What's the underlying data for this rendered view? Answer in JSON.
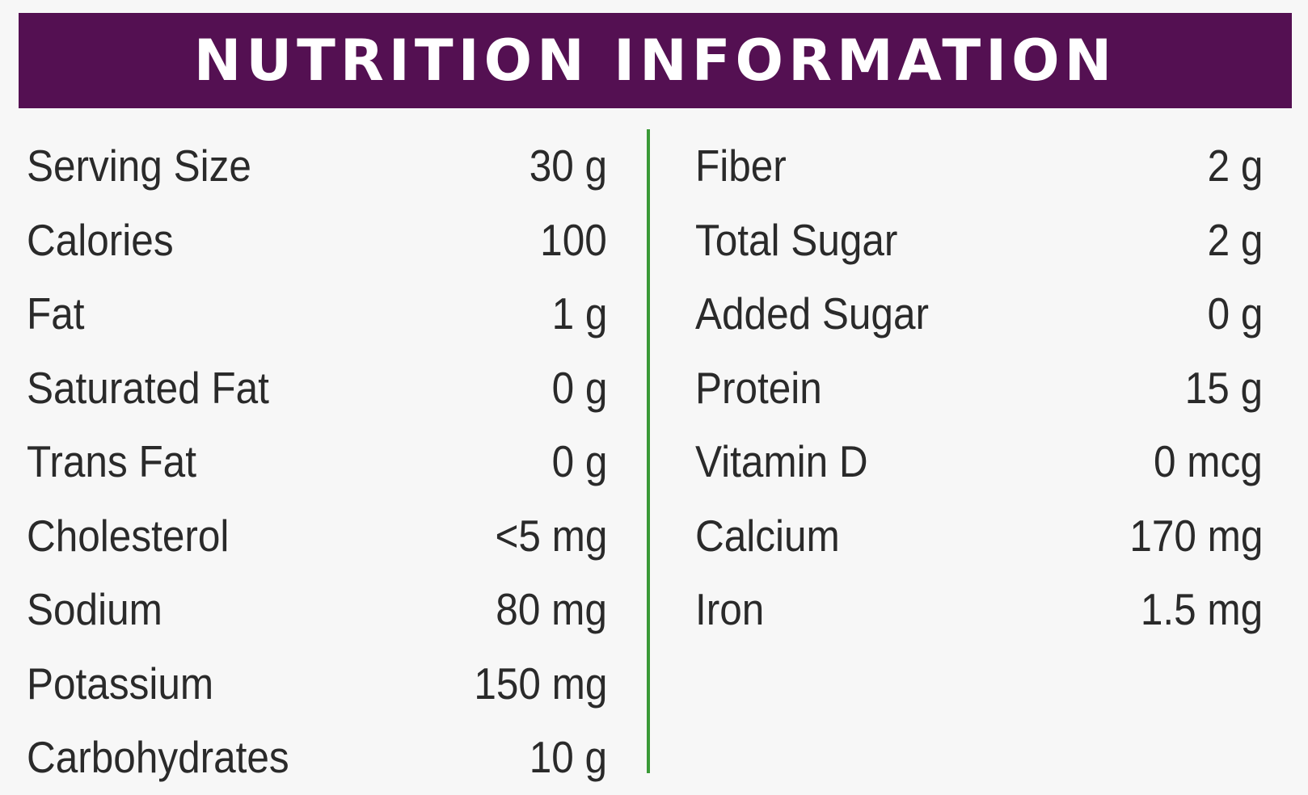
{
  "header": {
    "title": "NUTRITION INFORMATION"
  },
  "colors": {
    "header_bg": "#541052",
    "header_text": "#ffffff",
    "divider": "#3a9a37",
    "text": "#2a2a2a"
  },
  "left_column": [
    {
      "label": "Serving Size",
      "value": "30 g"
    },
    {
      "label": "Calories",
      "value": "100"
    },
    {
      "label": "Fat",
      "value": "1 g"
    },
    {
      "label": "Saturated Fat",
      "value": "0 g"
    },
    {
      "label": "Trans Fat",
      "value": "0 g"
    },
    {
      "label": "Cholesterol",
      "value": "<5 mg"
    },
    {
      "label": "Sodium",
      "value": "80 mg"
    },
    {
      "label": "Potassium",
      "value": "150 mg"
    },
    {
      "label": "Carbohydrates",
      "value": "10 g"
    }
  ],
  "right_column": [
    {
      "label": "Fiber",
      "value": "2 g"
    },
    {
      "label": "Total Sugar",
      "value": "2 g"
    },
    {
      "label": "Added Sugar",
      "value": "0 g"
    },
    {
      "label": "Protein",
      "value": "15 g"
    },
    {
      "label": "Vitamin D",
      "value": "0 mcg"
    },
    {
      "label": "Calcium",
      "value": "170 mg"
    },
    {
      "label": "Iron",
      "value": "1.5 mg"
    }
  ]
}
